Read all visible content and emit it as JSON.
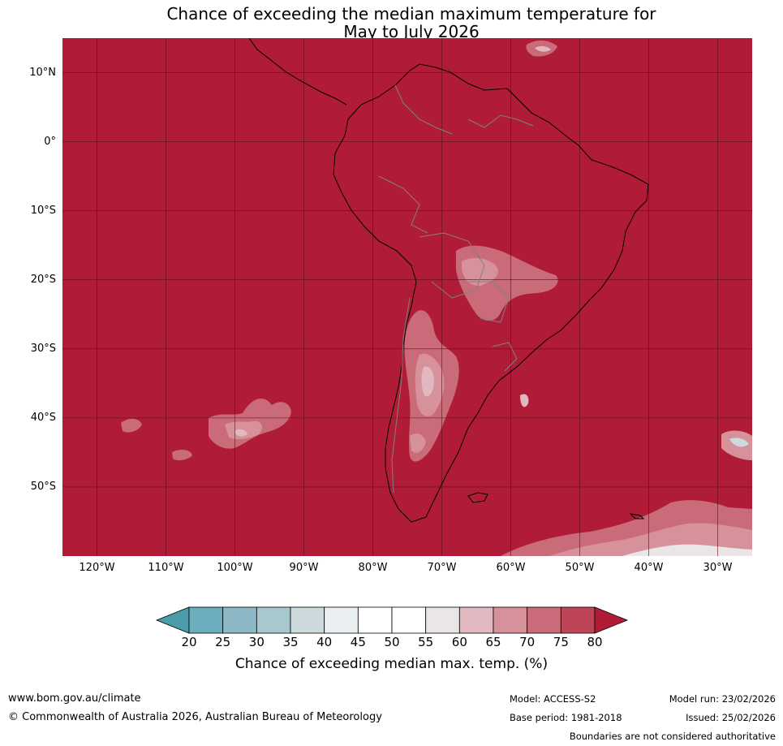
{
  "title": {
    "line1": "Chance of exceeding the median maximum temperature for",
    "line2": "May to July 2026"
  },
  "map": {
    "background_color": "#B01C37",
    "projection": "equirectangular",
    "extent": {
      "lon_min": -125,
      "lon_max": -25,
      "lat_min": -60,
      "lat_max": 15
    },
    "grid_color": "#5a0f1c",
    "coastline_color": "#000000",
    "border_color": "#808080",
    "latitude_labels": [
      {
        "value": 10,
        "text": "10°N"
      },
      {
        "value": 0,
        "text": "0°"
      },
      {
        "value": -10,
        "text": "10°S"
      },
      {
        "value": -20,
        "text": "20°S"
      },
      {
        "value": -30,
        "text": "30°S"
      },
      {
        "value": -40,
        "text": "40°S"
      },
      {
        "value": -50,
        "text": "50°S"
      }
    ],
    "longitude_labels": [
      {
        "value": -120,
        "text": "120°W"
      },
      {
        "value": -110,
        "text": "110°W"
      },
      {
        "value": -100,
        "text": "100°W"
      },
      {
        "value": -90,
        "text": "90°W"
      },
      {
        "value": -80,
        "text": "80°W"
      },
      {
        "value": -70,
        "text": "70°W"
      },
      {
        "value": -60,
        "text": "60°W"
      },
      {
        "value": -50,
        "text": "50°W"
      },
      {
        "value": -40,
        "text": "40°W"
      },
      {
        "value": -30,
        "text": "30°W"
      }
    ]
  },
  "colorbar": {
    "ticks": [
      "20",
      "25",
      "30",
      "35",
      "40",
      "45",
      "50",
      "55",
      "60",
      "65",
      "70",
      "75",
      "80"
    ],
    "below_color": "#4A9CAB",
    "above_color": "#B01C37",
    "bins": [
      {
        "range": "20-25",
        "color": "#6BAEBE"
      },
      {
        "range": "25-30",
        "color": "#8BB8C4"
      },
      {
        "range": "30-35",
        "color": "#A9C8CD"
      },
      {
        "range": "35-40",
        "color": "#CCDADD"
      },
      {
        "range": "40-45",
        "color": "#EAF0F2"
      },
      {
        "range": "45-50",
        "color": "#FFFFFF"
      },
      {
        "range": "50-55",
        "color": "#FFFFFF"
      },
      {
        "range": "55-60",
        "color": "#EAE6E7"
      },
      {
        "range": "60-65",
        "color": "#E1B8BF"
      },
      {
        "range": "65-70",
        "color": "#D6919B"
      },
      {
        "range": "70-75",
        "color": "#C96B78"
      },
      {
        "range": "75-80",
        "color": "#BE4557"
      }
    ],
    "label": "Chance of exceeding median max. temp. (%)"
  },
  "footer": {
    "website": "www.bom.gov.au/climate",
    "copyright": "© Commonwealth of Australia 2026, Australian Bureau of Meteorology",
    "model": "Model: ACCESS-S2",
    "model_run": "Model run: 23/02/2026",
    "base_period": "Base period: 1981-2018",
    "issued": "Issued: 25/02/2026",
    "disclaimer": "Boundaries are not considered authoritative"
  }
}
